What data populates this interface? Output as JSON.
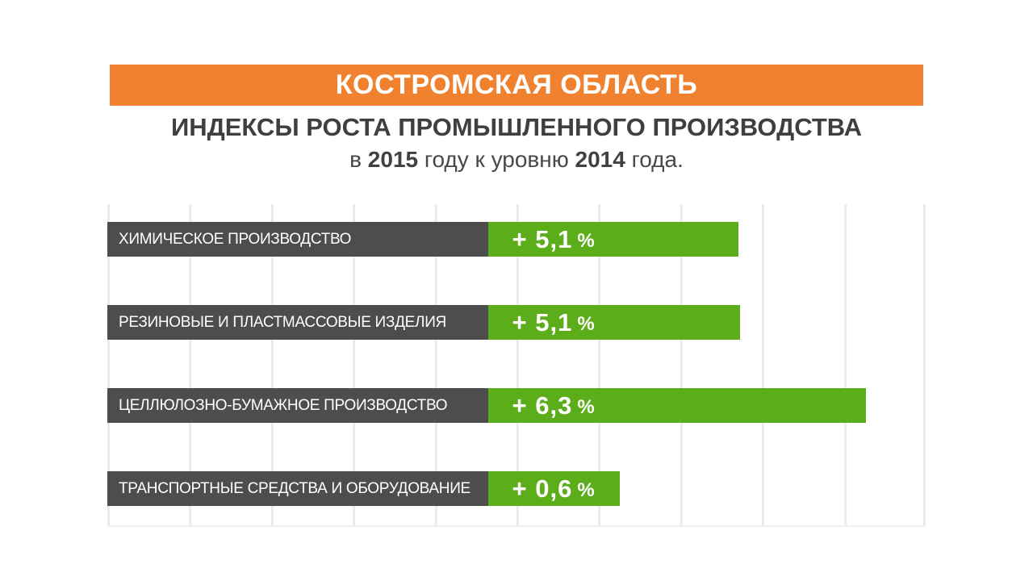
{
  "banner": {
    "text": "КОСТРОМСКАЯ ОБЛАСТЬ"
  },
  "title": "ИНДЕКСЫ РОСТА ПРОМЫШЛЕННОГО ПРОИЗВОДСТВА",
  "subtitle": {
    "prefix": "в ",
    "year_from": "2015",
    "middle": " году к уровню ",
    "year_to": "2014",
    "suffix": " года."
  },
  "colors": {
    "banner_orange": "#F0822F",
    "bar_green": "#5BAD19",
    "label_gray": "#4D4D4F",
    "title_text": "#3F3F41",
    "gridline": "#ECECEC",
    "bar_text": "#FFFFFF"
  },
  "bars": [
    {
      "label": "ХИМИЧЕСКОЕ ПРОИЗВОДСТВО",
      "value": "+ 5,1",
      "unit": "%",
      "green_width_pct": 30.6
    },
    {
      "label": "РЕЗИНОВЫЕ И ПЛАСТМАССОВЫЕ ИЗДЕЛИЯ",
      "value": "+ 5,1",
      "unit": "%",
      "green_width_pct": 30.8
    },
    {
      "label": "ЦЕЛЛЮЛОЗНО-БУМАЖНОЕ ПРОИЗВОДСТВО",
      "value": "+ 6,3",
      "unit": "%",
      "green_width_pct": 46.2
    },
    {
      "label": "ТРАНСПОРТНЫЕ СРЕДСТВА И ОБОРУДОВАНИЕ",
      "value": "+ 0,6",
      "unit": "%",
      "green_width_pct": 16.1
    }
  ],
  "chart_data": {
    "type": "bar",
    "orientation": "horizontal",
    "region": "КОСТРОМСКАЯ ОБЛАСТЬ",
    "title": "ИНДЕКСЫ РОСТА ПРОМЫШЛЕННОГО ПРОИЗВОДСТВА",
    "subtitle": "в 2015 году к уровню 2014 года.",
    "categories": [
      "ХИМИЧЕСКОЕ ПРОИЗВОДСТВО",
      "РЕЗИНОВЫЕ И ПЛАСТМАССОВЫЕ ИЗДЕЛИЯ",
      "ЦЕЛЛЮЛОЗНО-БУМАЖНОЕ ПРОИЗВОДСТВО",
      "ТРАНСПОРТНЫЕ СРЕДСТВА И ОБОРУДОВАНИЕ"
    ],
    "values": [
      5.1,
      5.1,
      6.3,
      0.6
    ],
    "value_labels": [
      "+ 5,1 %",
      "+ 5,1 %",
      "+ 6,3 %",
      "+ 0,6 %"
    ],
    "unit": "%",
    "grid": "vertical",
    "legend": "none"
  }
}
